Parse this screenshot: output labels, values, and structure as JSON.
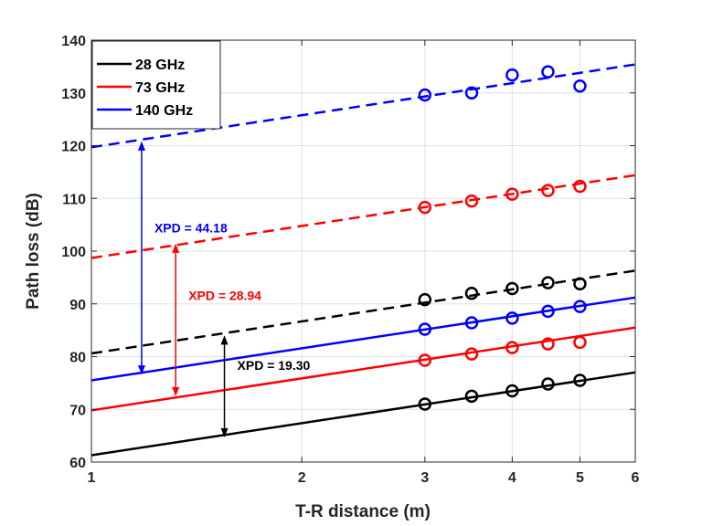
{
  "chart_data": {
    "type": "line",
    "title": "",
    "xlabel": "T-R distance (m)",
    "ylabel": "Path loss (dB)",
    "x_scale": "log",
    "xlim": [
      1,
      6
    ],
    "ylim": [
      60,
      140
    ],
    "x_ticks": [
      1,
      2,
      3,
      4,
      5,
      6
    ],
    "y_ticks": [
      60,
      70,
      80,
      90,
      100,
      110,
      120,
      130,
      140
    ],
    "grid": true,
    "legend_position": "top-left",
    "legend": [
      "28 GHz",
      "73 GHz",
      "140 GHz"
    ],
    "series": [
      {
        "name": "28 GHz",
        "color": "#000000",
        "co_pol": {
          "x": [
            3,
            3.5,
            4,
            4.5,
            5
          ],
          "y": [
            71.0,
            72.5,
            73.5,
            74.8,
            75.5
          ]
        },
        "co_pol_fit": {
          "x": [
            1,
            6
          ],
          "y": [
            61.3,
            77.0
          ]
        },
        "x_pol": {
          "x": [
            3,
            3.5,
            4,
            4.5,
            5
          ],
          "y": [
            90.8,
            92.0,
            92.9,
            94.0,
            93.8
          ]
        },
        "x_pol_fit": {
          "x": [
            1,
            6
          ],
          "y": [
            80.6,
            96.3
          ]
        }
      },
      {
        "name": "73 GHz",
        "color": "#ff0000",
        "co_pol": {
          "x": [
            3,
            3.5,
            4,
            4.5,
            5
          ],
          "y": [
            79.3,
            80.5,
            81.7,
            82.4,
            82.7
          ]
        },
        "co_pol_fit": {
          "x": [
            1,
            6
          ],
          "y": [
            69.8,
            85.5
          ]
        },
        "x_pol": {
          "x": [
            3,
            3.5,
            4,
            4.5,
            5
          ],
          "y": [
            108.3,
            109.5,
            110.8,
            111.5,
            112.3
          ]
        },
        "x_pol_fit": {
          "x": [
            1,
            6
          ],
          "y": [
            98.7,
            114.4
          ]
        }
      },
      {
        "name": "140 GHz",
        "color": "#0000ff",
        "co_pol": {
          "x": [
            3,
            3.5,
            4,
            4.5,
            5
          ],
          "y": [
            85.2,
            86.4,
            87.3,
            88.6,
            89.5
          ]
        },
        "co_pol_fit": {
          "x": [
            1,
            6
          ],
          "y": [
            75.5,
            91.2
          ]
        },
        "x_pol": {
          "x": [
            3,
            3.5,
            4,
            4.5,
            5
          ],
          "y": [
            129.6,
            130.0,
            133.4,
            134.0,
            131.3
          ]
        },
        "x_pol_fit": {
          "x": [
            1,
            6
          ],
          "y": [
            119.7,
            135.4
          ]
        }
      }
    ],
    "annotations": [
      {
        "text": "XPD = 19.30",
        "color": "#000000",
        "x": 1.55,
        "y_from": 64.7,
        "y_to": 84.0
      },
      {
        "text": "XPD = 28.94",
        "color": "#ff0000",
        "x": 1.32,
        "y_from": 72.5,
        "y_to": 101.4
      },
      {
        "text": "XPD = 44.18",
        "color": "#0000ff",
        "x": 1.18,
        "y_from": 76.6,
        "y_to": 120.8
      }
    ]
  }
}
